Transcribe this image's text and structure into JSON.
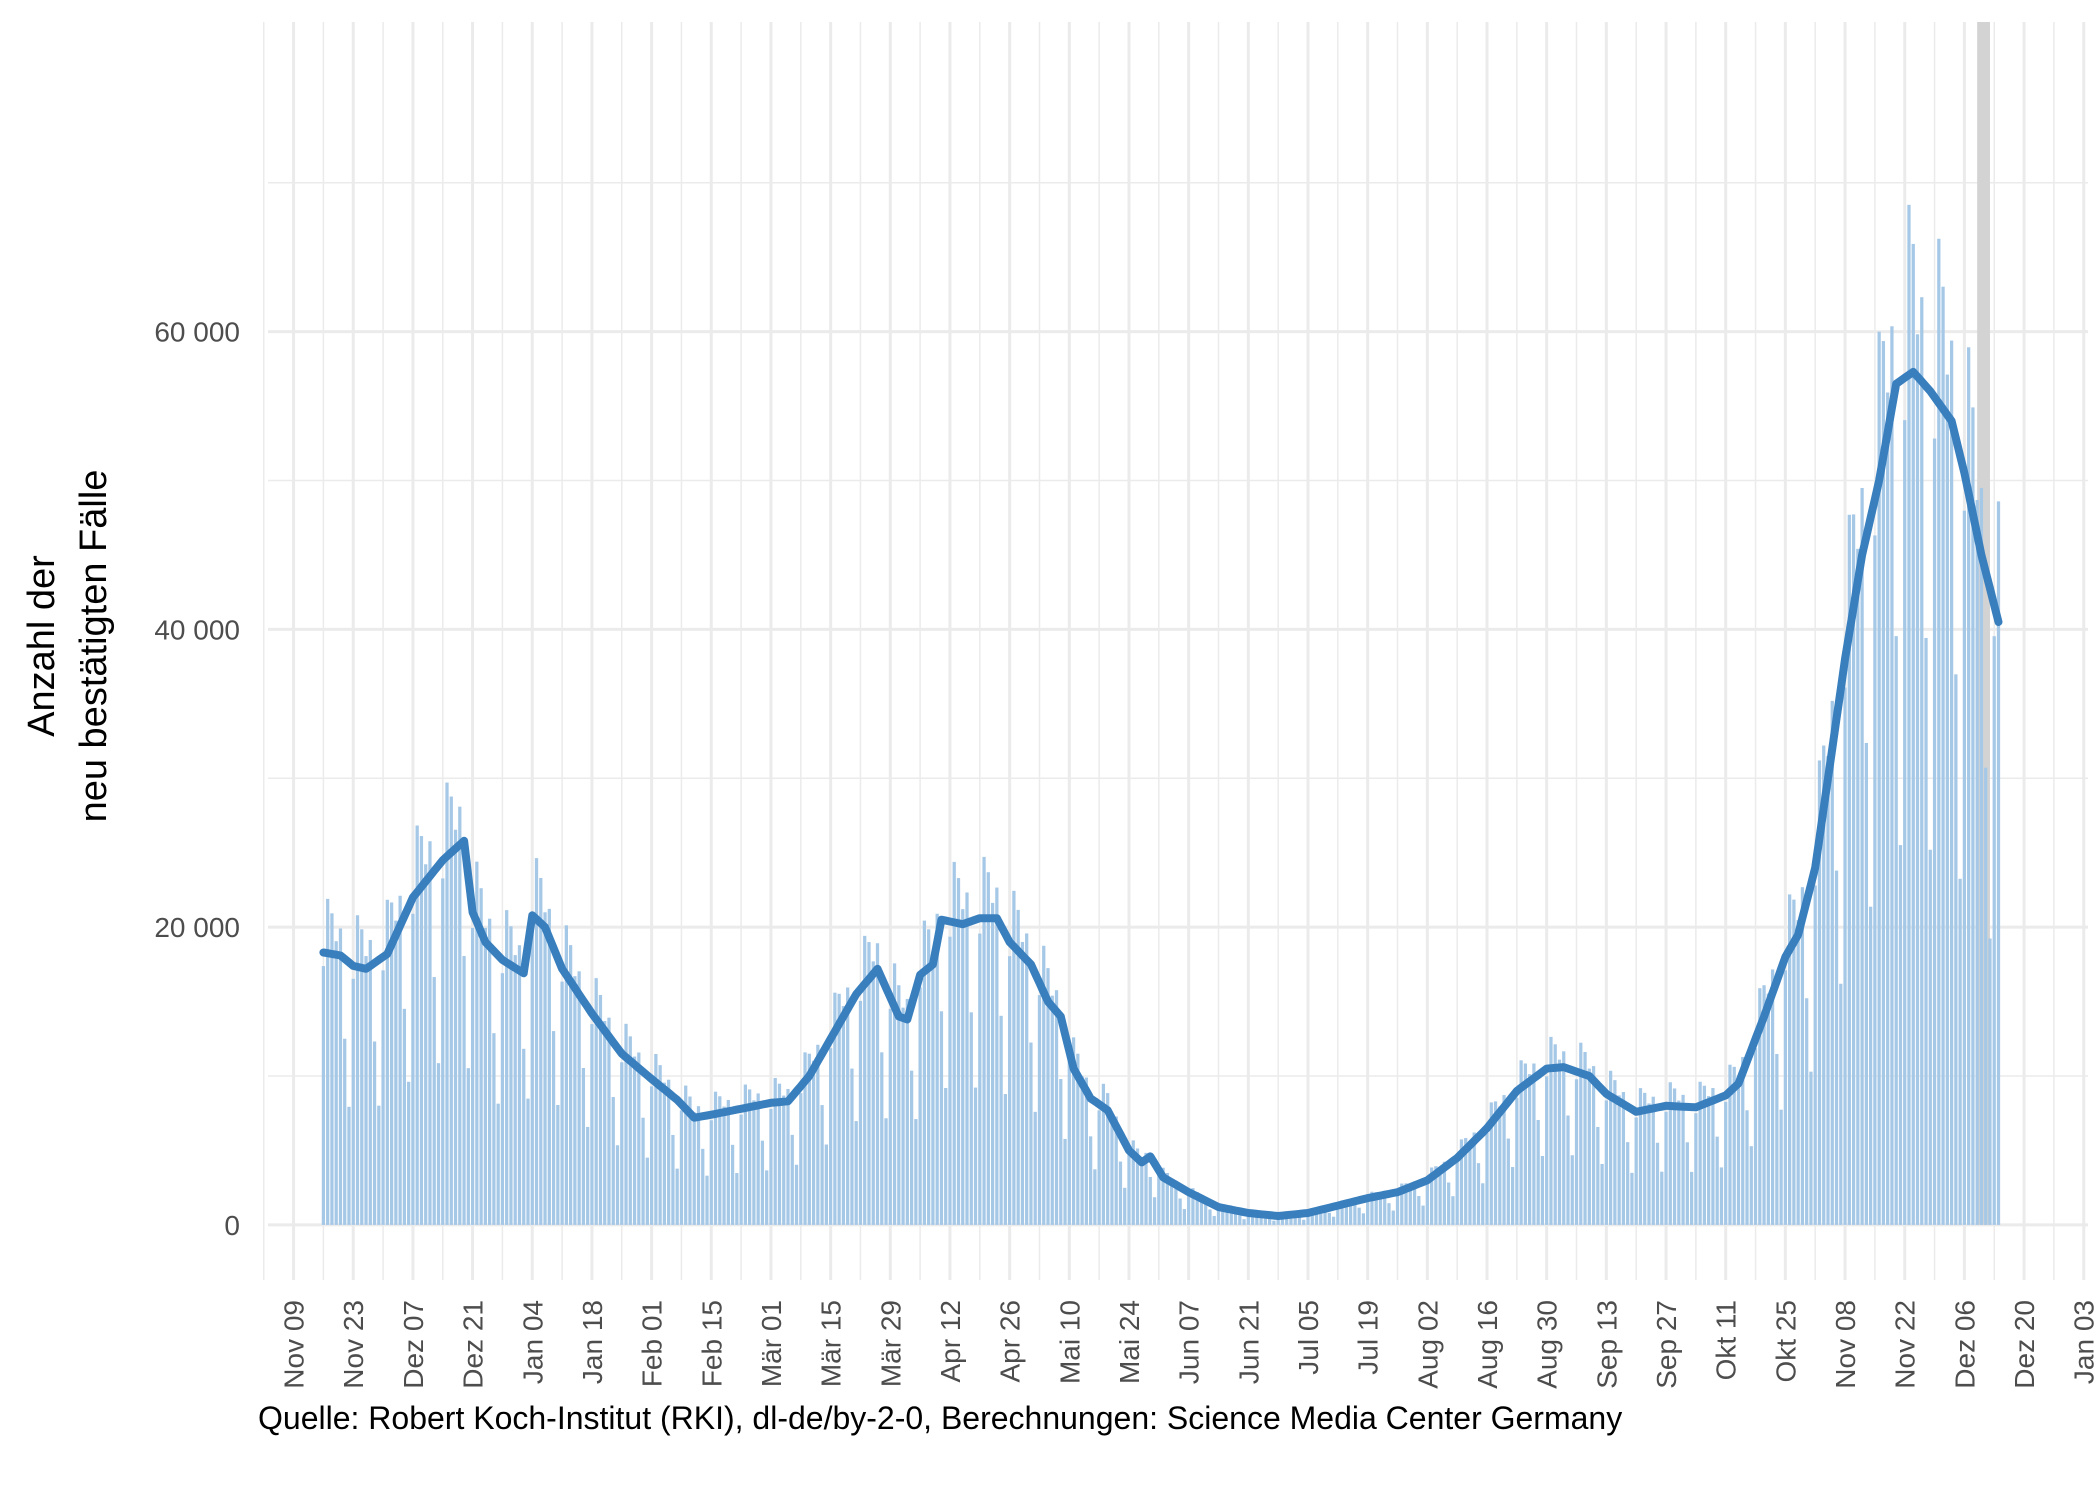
{
  "chart_data": {
    "type": "bar",
    "overlay_line": true,
    "ylabel_lines": [
      "Anzahl der",
      "neu bestätigten Fälle"
    ],
    "y_ticks": [
      {
        "value": 0,
        "label": "0"
      },
      {
        "value": 20000,
        "label": "20 000"
      },
      {
        "value": 40000,
        "label": "40 000"
      },
      {
        "value": 60000,
        "label": "60 000"
      }
    ],
    "ylim": [
      -3700,
      80800
    ],
    "x_range": {
      "start": "2020-11-03",
      "end": "2022-01-04"
    },
    "x_ticks": [
      {
        "date": "2020-11-09",
        "label": "Nov 09"
      },
      {
        "date": "2020-11-23",
        "label": "Nov 23"
      },
      {
        "date": "2020-12-07",
        "label": "Dez 07"
      },
      {
        "date": "2020-12-21",
        "label": "Dez 21"
      },
      {
        "date": "2021-01-04",
        "label": "Jan 04"
      },
      {
        "date": "2021-01-18",
        "label": "Jan 18"
      },
      {
        "date": "2021-02-01",
        "label": "Feb 01"
      },
      {
        "date": "2021-02-15",
        "label": "Feb 15"
      },
      {
        "date": "2021-03-01",
        "label": "Mär 01"
      },
      {
        "date": "2021-03-15",
        "label": "Mär 15"
      },
      {
        "date": "2021-03-29",
        "label": "Mär 29"
      },
      {
        "date": "2021-04-12",
        "label": "Apr 12"
      },
      {
        "date": "2021-04-26",
        "label": "Apr 26"
      },
      {
        "date": "2021-05-10",
        "label": "Mai 10"
      },
      {
        "date": "2021-05-24",
        "label": "Mai 24"
      },
      {
        "date": "2021-06-07",
        "label": "Jun 07"
      },
      {
        "date": "2021-06-21",
        "label": "Jun 21"
      },
      {
        "date": "2021-07-05",
        "label": "Jul 05"
      },
      {
        "date": "2021-07-19",
        "label": "Jul 19"
      },
      {
        "date": "2021-08-02",
        "label": "Aug 02"
      },
      {
        "date": "2021-08-16",
        "label": "Aug 16"
      },
      {
        "date": "2021-08-30",
        "label": "Aug 30"
      },
      {
        "date": "2021-09-13",
        "label": "Sep 13"
      },
      {
        "date": "2021-09-27",
        "label": "Sep 27"
      },
      {
        "date": "2021-10-11",
        "label": "Okt 11"
      },
      {
        "date": "2021-10-25",
        "label": "Okt 25"
      },
      {
        "date": "2021-11-08",
        "label": "Nov 08"
      },
      {
        "date": "2021-11-22",
        "label": "Nov 22"
      },
      {
        "date": "2021-12-06",
        "label": "Dez 06"
      },
      {
        "date": "2021-12-20",
        "label": "Dez 20"
      },
      {
        "date": "2022-01-03",
        "label": "Jan 03"
      }
    ],
    "shaded_period": {
      "start": "2021-12-09",
      "end": "2021-12-12"
    },
    "weekly_pattern": [
      0.95,
      1.2,
      1.15,
      1.05,
      1.1,
      0.7,
      0.45
    ],
    "weekly_pattern_start": "2020-11-16",
    "series": [
      {
        "name": "",
        "kind": "bars",
        "start_date": "2020-11-16",
        "end_date": "2021-12-14"
      },
      {
        "name": "",
        "kind": "line",
        "points": [
          {
            "date": "2020-11-16",
            "value": 18300
          },
          {
            "date": "2020-11-20",
            "value": 18100
          },
          {
            "date": "2020-11-23",
            "value": 17400
          },
          {
            "date": "2020-11-26",
            "value": 17200
          },
          {
            "date": "2020-12-01",
            "value": 18200
          },
          {
            "date": "2020-12-07",
            "value": 22000
          },
          {
            "date": "2020-12-14",
            "value": 24500
          },
          {
            "date": "2020-12-19",
            "value": 25800
          },
          {
            "date": "2020-12-21",
            "value": 21000
          },
          {
            "date": "2020-12-24",
            "value": 19000
          },
          {
            "date": "2020-12-28",
            "value": 17800
          },
          {
            "date": "2021-01-02",
            "value": 16900
          },
          {
            "date": "2021-01-04",
            "value": 20800
          },
          {
            "date": "2021-01-07",
            "value": 20000
          },
          {
            "date": "2021-01-11",
            "value": 17200
          },
          {
            "date": "2021-01-18",
            "value": 14200
          },
          {
            "date": "2021-01-25",
            "value": 11500
          },
          {
            "date": "2021-02-01",
            "value": 9800
          },
          {
            "date": "2021-02-07",
            "value": 8400
          },
          {
            "date": "2021-02-11",
            "value": 7200
          },
          {
            "date": "2021-02-15",
            "value": 7400
          },
          {
            "date": "2021-02-22",
            "value": 7800
          },
          {
            "date": "2021-03-01",
            "value": 8200
          },
          {
            "date": "2021-03-05",
            "value": 8300
          },
          {
            "date": "2021-03-10",
            "value": 10000
          },
          {
            "date": "2021-03-15",
            "value": 12500
          },
          {
            "date": "2021-03-21",
            "value": 15500
          },
          {
            "date": "2021-03-26",
            "value": 17200
          },
          {
            "date": "2021-03-31",
            "value": 14000
          },
          {
            "date": "2021-04-02",
            "value": 13800
          },
          {
            "date": "2021-04-05",
            "value": 16800
          },
          {
            "date": "2021-04-08",
            "value": 17500
          },
          {
            "date": "2021-04-10",
            "value": 20500
          },
          {
            "date": "2021-04-15",
            "value": 20200
          },
          {
            "date": "2021-04-19",
            "value": 20600
          },
          {
            "date": "2021-04-23",
            "value": 20600
          },
          {
            "date": "2021-04-26",
            "value": 19000
          },
          {
            "date": "2021-05-01",
            "value": 17500
          },
          {
            "date": "2021-05-05",
            "value": 15000
          },
          {
            "date": "2021-05-08",
            "value": 14000
          },
          {
            "date": "2021-05-11",
            "value": 10500
          },
          {
            "date": "2021-05-15",
            "value": 8500
          },
          {
            "date": "2021-05-19",
            "value": 7700
          },
          {
            "date": "2021-05-24",
            "value": 5000
          },
          {
            "date": "2021-05-27",
            "value": 4200
          },
          {
            "date": "2021-05-29",
            "value": 4600
          },
          {
            "date": "2021-06-01",
            "value": 3200
          },
          {
            "date": "2021-06-07",
            "value": 2200
          },
          {
            "date": "2021-06-14",
            "value": 1200
          },
          {
            "date": "2021-06-21",
            "value": 800
          },
          {
            "date": "2021-06-28",
            "value": 600
          },
          {
            "date": "2021-07-05",
            "value": 800
          },
          {
            "date": "2021-07-12",
            "value": 1300
          },
          {
            "date": "2021-07-19",
            "value": 1800
          },
          {
            "date": "2021-07-26",
            "value": 2200
          },
          {
            "date": "2021-08-02",
            "value": 3000
          },
          {
            "date": "2021-08-09",
            "value": 4500
          },
          {
            "date": "2021-08-16",
            "value": 6500
          },
          {
            "date": "2021-08-23",
            "value": 9000
          },
          {
            "date": "2021-08-30",
            "value": 10500
          },
          {
            "date": "2021-09-03",
            "value": 10600
          },
          {
            "date": "2021-09-09",
            "value": 10000
          },
          {
            "date": "2021-09-13",
            "value": 8800
          },
          {
            "date": "2021-09-20",
            "value": 7600
          },
          {
            "date": "2021-09-27",
            "value": 8000
          },
          {
            "date": "2021-10-04",
            "value": 7900
          },
          {
            "date": "2021-10-11",
            "value": 8700
          },
          {
            "date": "2021-10-14",
            "value": 9500
          },
          {
            "date": "2021-10-20",
            "value": 14000
          },
          {
            "date": "2021-10-25",
            "value": 18000
          },
          {
            "date": "2021-10-28",
            "value": 19500
          },
          {
            "date": "2021-11-01",
            "value": 24000
          },
          {
            "date": "2021-11-04",
            "value": 30000
          },
          {
            "date": "2021-11-08",
            "value": 38000
          },
          {
            "date": "2021-11-12",
            "value": 45000
          },
          {
            "date": "2021-11-16",
            "value": 50000
          },
          {
            "date": "2021-11-20",
            "value": 56500
          },
          {
            "date": "2021-11-24",
            "value": 57300
          },
          {
            "date": "2021-11-28",
            "value": 56000
          },
          {
            "date": "2021-12-03",
            "value": 54000
          },
          {
            "date": "2021-12-06",
            "value": 50500
          },
          {
            "date": "2021-12-10",
            "value": 45000
          },
          {
            "date": "2021-12-14",
            "value": 40500
          }
        ]
      }
    ],
    "colors": {
      "bar": "#a6c8e7",
      "line": "#3a7fbd",
      "grid": "#ebebeb",
      "shade": "#d3d3d3"
    },
    "grid": true,
    "legend": "none"
  },
  "caption": "Quelle: Robert Koch-Institut (RKI), dl-de/by-2-0, Berechnungen: Science Media Center Germany"
}
